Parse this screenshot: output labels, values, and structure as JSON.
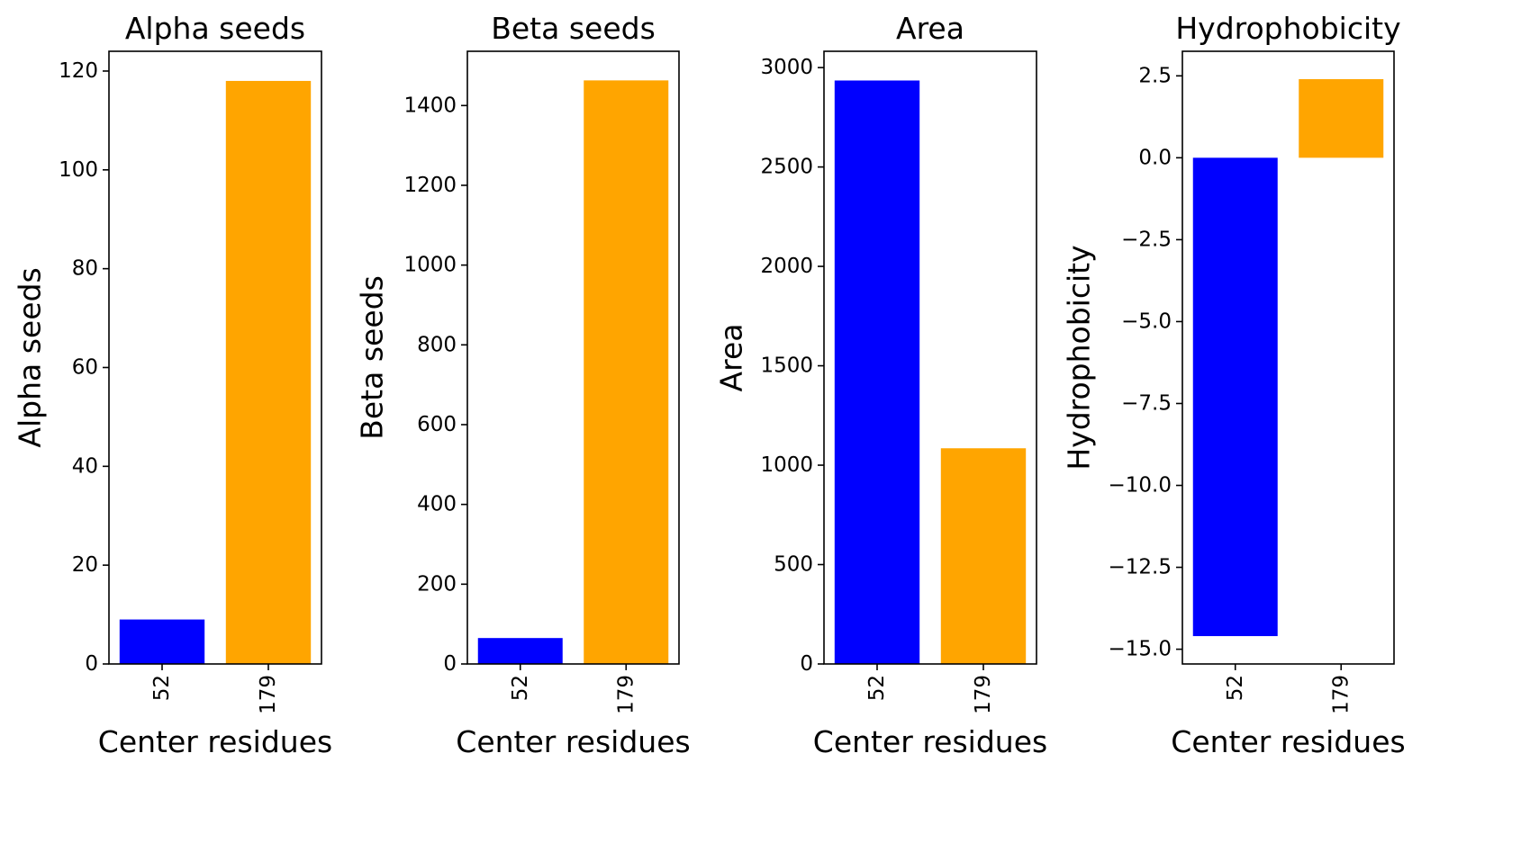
{
  "chart_data": [
    {
      "type": "bar",
      "title": "Alpha seeds",
      "xlabel": "Center residues",
      "ylabel": "Alpha seeds",
      "categories": [
        "52",
        "179"
      ],
      "values": [
        9,
        118
      ],
      "colors": [
        "#0000ff",
        "#ffa500"
      ],
      "ylim": [
        0,
        124
      ],
      "yticks": [
        0,
        20,
        40,
        60,
        80,
        100,
        120
      ],
      "ytick_labels": [
        "0",
        "20",
        "40",
        "60",
        "80",
        "100",
        "120"
      ]
    },
    {
      "type": "bar",
      "title": "Beta seeds",
      "xlabel": "Center residues",
      "ylabel": "Beta seeds",
      "categories": [
        "52",
        "179"
      ],
      "values": [
        65,
        1463
      ],
      "colors": [
        "#0000ff",
        "#ffa500"
      ],
      "ylim": [
        0,
        1536
      ],
      "yticks": [
        0,
        200,
        400,
        600,
        800,
        1000,
        1200,
        1400
      ],
      "ytick_labels": [
        "0",
        "200",
        "400",
        "600",
        "800",
        "1000",
        "1200",
        "1400"
      ]
    },
    {
      "type": "bar",
      "title": "Area",
      "xlabel": "Center residues",
      "ylabel": "Area",
      "categories": [
        "52",
        "179"
      ],
      "values": [
        2935,
        1085
      ],
      "colors": [
        "#0000ff",
        "#ffa500"
      ],
      "ylim": [
        0,
        3082
      ],
      "yticks": [
        0,
        500,
        1000,
        1500,
        2000,
        2500,
        3000
      ],
      "ytick_labels": [
        "0",
        "500",
        "1000",
        "1500",
        "2000",
        "2500",
        "3000"
      ]
    },
    {
      "type": "bar",
      "title": "Hydrophobicity",
      "xlabel": "Center residues",
      "ylabel": "Hydrophobicity",
      "categories": [
        "52",
        "179"
      ],
      "values": [
        -14.6,
        2.4
      ],
      "colors": [
        "#0000ff",
        "#ffa500"
      ],
      "ylim": [
        -15.45,
        3.25
      ],
      "yticks": [
        -15.0,
        -12.5,
        -10.0,
        -7.5,
        -5.0,
        -2.5,
        0.0,
        2.5
      ],
      "ytick_labels": [
        "−15.0",
        "−12.5",
        "−10.0",
        "−7.5",
        "−5.0",
        "−2.5",
        "0.0",
        "2.5"
      ]
    }
  ]
}
